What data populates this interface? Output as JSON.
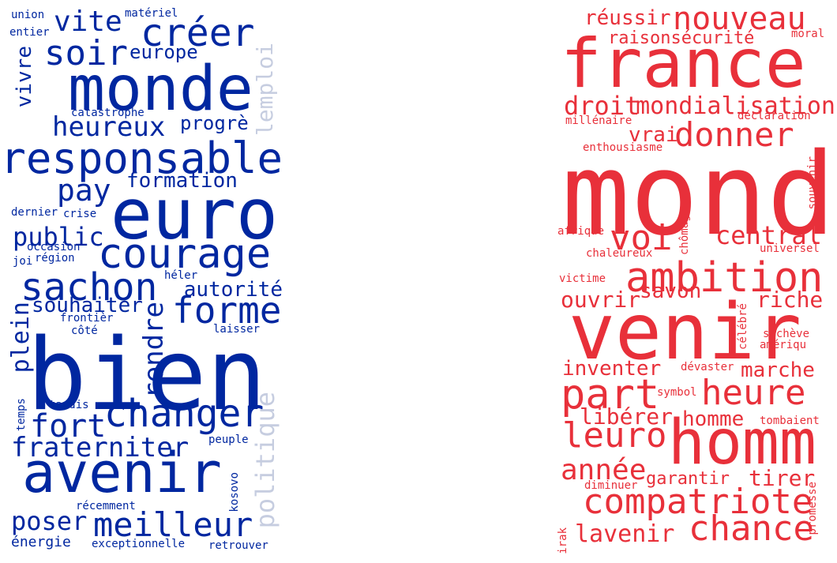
{
  "colors": {
    "left_primary": "#0027a0",
    "left_faded": "#c6cde0",
    "right_primary": "#e8303a",
    "background": "#ffffff"
  },
  "clouds": [
    {
      "name": "left",
      "words": [
        {
          "text": "union"
        },
        {
          "text": "matériel"
        },
        {
          "text": "entier"
        },
        {
          "text": "vite"
        },
        {
          "text": "créer"
        },
        {
          "text": "soir"
        },
        {
          "text": "europe"
        },
        {
          "text": "vivre"
        },
        {
          "text": "monde"
        },
        {
          "text": "lemploi"
        },
        {
          "text": "catastrophe"
        },
        {
          "text": "heureux"
        },
        {
          "text": "progrè"
        },
        {
          "text": "responsable"
        },
        {
          "text": "formation"
        },
        {
          "text": "pay"
        },
        {
          "text": "euro"
        },
        {
          "text": "dernier"
        },
        {
          "text": "crise"
        },
        {
          "text": "public"
        },
        {
          "text": "occasion"
        },
        {
          "text": "courage"
        },
        {
          "text": "joi"
        },
        {
          "text": "région"
        },
        {
          "text": "sachon"
        },
        {
          "text": "héler"
        },
        {
          "text": "autorité"
        },
        {
          "text": "souhaiter"
        },
        {
          "text": "forme"
        },
        {
          "text": "plein"
        },
        {
          "text": "frontièr"
        },
        {
          "text": "côté"
        },
        {
          "text": "rendre"
        },
        {
          "text": "laisser"
        },
        {
          "text": "bien"
        },
        {
          "text": "tandis"
        },
        {
          "text": "temps"
        },
        {
          "text": "changer"
        },
        {
          "text": "fort"
        },
        {
          "text": "politique"
        },
        {
          "text": "fraterniter"
        },
        {
          "text": "peuple"
        },
        {
          "text": "avenir"
        },
        {
          "text": "kosovo"
        },
        {
          "text": "récemment"
        },
        {
          "text": "poser"
        },
        {
          "text": "meilleur"
        },
        {
          "text": "énergie"
        },
        {
          "text": "exceptionnelle"
        },
        {
          "text": "retrouver"
        }
      ]
    },
    {
      "name": "right",
      "words": [
        {
          "text": "réussir"
        },
        {
          "text": "nouveau"
        },
        {
          "text": "raisonsécurité"
        },
        {
          "text": "moral"
        },
        {
          "text": "france"
        },
        {
          "text": "droit"
        },
        {
          "text": "mondialisation"
        },
        {
          "text": "millénaire"
        },
        {
          "text": "déclaration"
        },
        {
          "text": "vrai"
        },
        {
          "text": "donner"
        },
        {
          "text": "enthousiasme"
        },
        {
          "text": "mond"
        },
        {
          "text": "souvenir"
        },
        {
          "text": "afrique"
        },
        {
          "text": "chômage"
        },
        {
          "text": "voi"
        },
        {
          "text": "central"
        },
        {
          "text": "chaleureux"
        },
        {
          "text": "universel"
        },
        {
          "text": "ambition"
        },
        {
          "text": "victime"
        },
        {
          "text": "ouvrir"
        },
        {
          "text": "savon"
        },
        {
          "text": "riche"
        },
        {
          "text": "célébré"
        },
        {
          "text": "venir"
        },
        {
          "text": "sachève"
        },
        {
          "text": "amériqu"
        },
        {
          "text": "inventer"
        },
        {
          "text": "dévaster"
        },
        {
          "text": "marche"
        },
        {
          "text": "part"
        },
        {
          "text": "symbol"
        },
        {
          "text": "heure"
        },
        {
          "text": "libérer"
        },
        {
          "text": "homme"
        },
        {
          "text": "tombaient"
        },
        {
          "text": "leuro"
        },
        {
          "text": "homm"
        },
        {
          "text": "année"
        },
        {
          "text": "garantir"
        },
        {
          "text": "tirer"
        },
        {
          "text": "diminuer"
        },
        {
          "text": "compatriote"
        },
        {
          "text": "promesse"
        },
        {
          "text": "irak"
        },
        {
          "text": "lavenir"
        },
        {
          "text": "chance"
        }
      ]
    }
  ]
}
